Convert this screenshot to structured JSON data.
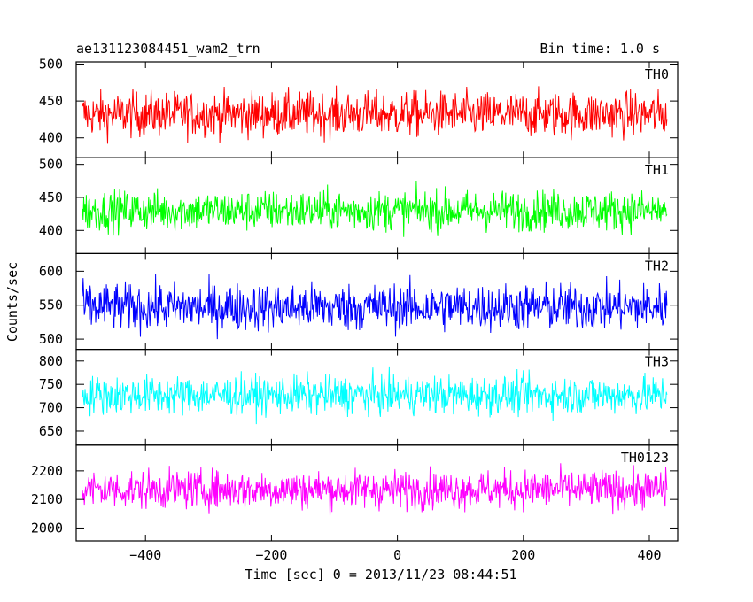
{
  "header": {
    "title": "ae131123084451_wam2_trn",
    "bin_time": "Bin time: 1.0 s"
  },
  "chart_data": {
    "type": "line",
    "ylabel": "Counts/sec",
    "xlabel": "Time [sec] 0 = 2013/11/23 08:44:51",
    "xlim": [
      -510,
      445
    ],
    "x_data_range": [
      -500,
      428
    ],
    "x_ticks": [
      -400,
      -200,
      0,
      200,
      400
    ],
    "x_tick_labels": [
      "−400",
      "−200",
      "0",
      "200",
      "400"
    ],
    "panels": [
      {
        "name": "TH0",
        "color": "#ff0000",
        "ylim": [
          373,
          503
        ],
        "yticks": [
          400,
          450,
          500
        ],
        "mean": 432,
        "spread": 28
      },
      {
        "name": "TH1",
        "color": "#00ff00",
        "ylim": [
          365,
          510
        ],
        "yticks": [
          400,
          450,
          500
        ],
        "mean": 430,
        "spread": 28
      },
      {
        "name": "TH2",
        "color": "#0000ff",
        "ylim": [
          485,
          626
        ],
        "yticks": [
          500,
          550,
          600
        ],
        "mean": 547,
        "spread": 32
      },
      {
        "name": "TH3",
        "color": "#00ffff",
        "ylim": [
          620,
          825
        ],
        "yticks": [
          650,
          700,
          750,
          800
        ],
        "mean": 727,
        "spread": 38
      },
      {
        "name": "TH0123",
        "color": "#ff00ff",
        "ylim": [
          1955,
          2290
        ],
        "yticks": [
          2000,
          2100,
          2200
        ],
        "mean": 2135,
        "spread": 62
      }
    ]
  }
}
